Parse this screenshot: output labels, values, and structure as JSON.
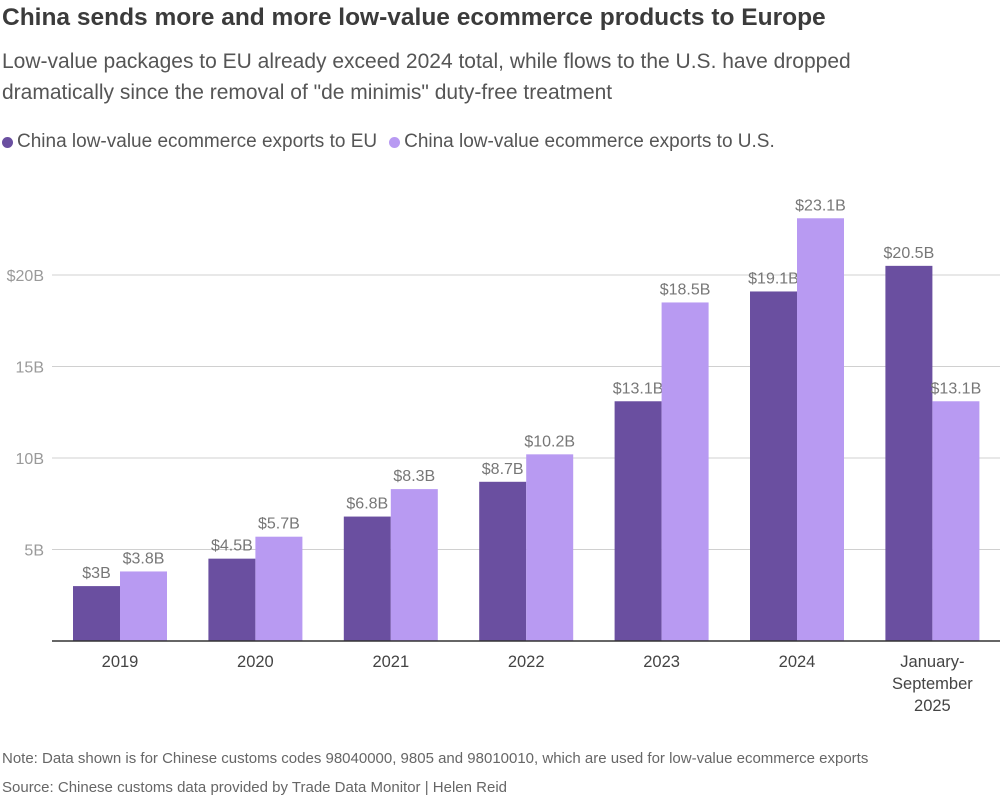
{
  "title": "China sends more and more low-value ecommerce products to Europe",
  "subtitle": "Low-value packages to EU already exceed 2024 total, while flows to the U.S. have dropped dramatically since the removal of \"de minimis\" duty-free treatment",
  "note": "Note: Data shown is for Chinese customs codes 98040000, 9805 and 98010010, which are used for low-value ecommerce exports",
  "source": "Source: Chinese customs data provided by Trade Data Monitor | Helen Reid",
  "chart_data": {
    "type": "bar",
    "title": "China sends more and more low-value ecommerce products to Europe",
    "categories": [
      "2019",
      "2020",
      "2021",
      "2022",
      "2023",
      "2024",
      "January-September 2025"
    ],
    "category_label_lines": [
      [
        "2019"
      ],
      [
        "2020"
      ],
      [
        "2021"
      ],
      [
        "2022"
      ],
      [
        "2023"
      ],
      [
        "2024"
      ],
      [
        "January-",
        "September",
        "2025"
      ]
    ],
    "series": [
      {
        "name": "China low-value ecommerce exports to EU",
        "color": "#6a4fa0",
        "values": [
          3,
          4.5,
          6.8,
          8.7,
          13.1,
          19.1,
          20.5
        ],
        "labels": [
          "$3B",
          "$4.5B",
          "$6.8B",
          "$8.7B",
          "$13.1B",
          "$19.1B",
          "$20.5B"
        ]
      },
      {
        "name": "China low-value ecommerce exports to U.S.",
        "color": "#b89af2",
        "values": [
          3.8,
          5.7,
          8.3,
          10.2,
          18.5,
          23.1,
          13.1
        ],
        "labels": [
          "$3.8B",
          "$5.7B",
          "$8.3B",
          "$10.2B",
          "$18.5B",
          "$23.1B",
          "$13.1B"
        ]
      }
    ],
    "yticks": [
      5,
      10,
      15,
      20
    ],
    "ytick_labels": [
      "5B",
      "10B",
      "15B",
      "$20B"
    ],
    "ylim": [
      0,
      25
    ],
    "xlabel": "",
    "ylabel": "",
    "grid": true,
    "legend": "top-left"
  }
}
